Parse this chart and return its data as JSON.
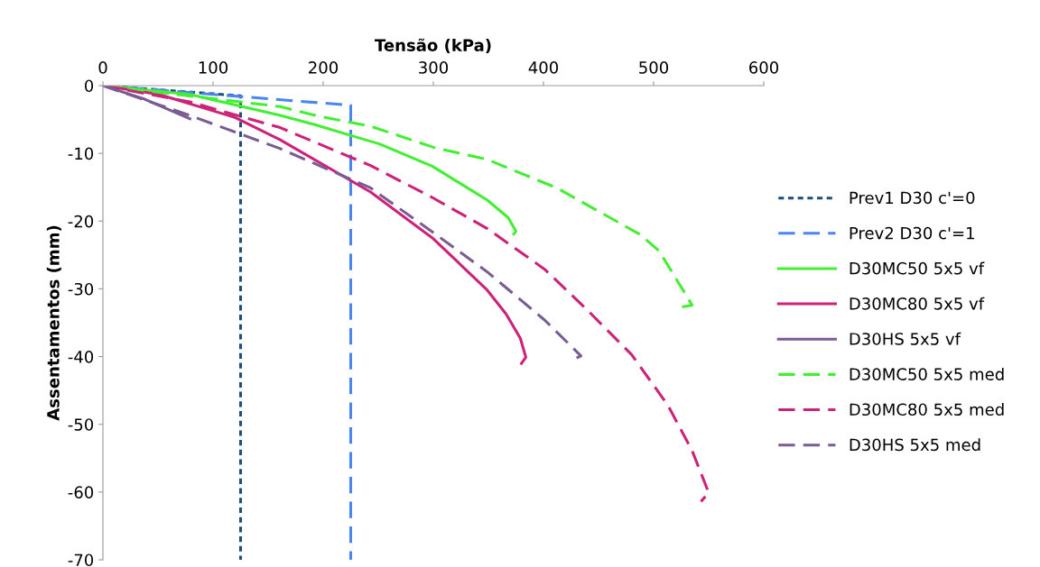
{
  "chart_data": {
    "type": "line",
    "xlabel": "Tensão (kPa)",
    "ylabel": "Assentamentos (mm)",
    "xlim": [
      0,
      600
    ],
    "xticks": [
      0,
      100,
      200,
      300,
      400,
      500,
      600
    ],
    "ylim": [
      -70,
      0
    ],
    "yticks": [
      -70,
      -60,
      -50,
      -40,
      -30,
      -20,
      -10,
      0
    ],
    "grid": false,
    "legend": "right",
    "series": [
      {
        "name": "Prev1 D30 c'=0",
        "color": "#1f4e79",
        "line_style": "dotted",
        "x": [
          0,
          125,
          125
        ],
        "values": [
          0,
          -1.5,
          -70
        ]
      },
      {
        "name": "Prev2 D30 c'=1",
        "color": "#4a86f0",
        "line_style": "dashed",
        "x": [
          0,
          225,
          225
        ],
        "values": [
          0,
          -2.9,
          -70
        ]
      },
      {
        "name": "D30MC50 5x5 vf",
        "color": "#44ee33",
        "line_style": "solid",
        "x": [
          0,
          79,
          161,
          193,
          226,
          251,
          299,
          349,
          368,
          375,
          373
        ],
        "values": [
          0,
          -1.3,
          -4.4,
          -5.8,
          -7.4,
          -8.6,
          -11.9,
          -16.9,
          -19.5,
          -21.5,
          -21.9
        ]
      },
      {
        "name": "D30MC80 5x5 vf",
        "color": "#cc2277",
        "line_style": "solid",
        "x": [
          0,
          51,
          120,
          161,
          243,
          300,
          349,
          366,
          379,
          384,
          380
        ],
        "values": [
          0,
          -1.3,
          -4.7,
          -8.0,
          -15.7,
          -22.6,
          -30.2,
          -33.7,
          -37.3,
          -40.1,
          -41.0
        ]
      },
      {
        "name": "D30HS 5x5 vf",
        "color": "#7a5c94",
        "line_style": "solid",
        "x": [
          0,
          38,
          79
        ],
        "values": [
          0,
          -2.0,
          -4.9
        ]
      },
      {
        "name": "D30MC50 5x5 med",
        "color": "#44ee33",
        "line_style": "dashed",
        "x": [
          0,
          161,
          193,
          243,
          300,
          349,
          412,
          488,
          505,
          535,
          525
        ],
        "values": [
          0,
          -3.1,
          -4.4,
          -6.0,
          -9.1,
          -10.9,
          -15.1,
          -22.0,
          -24.4,
          -32.4,
          -32.7
        ]
      },
      {
        "name": "D30MC80 5x5 med",
        "color": "#cc2277",
        "line_style": "dashed",
        "x": [
          0,
          79,
          161,
          243,
          300,
          349,
          401,
          439,
          480,
          513,
          535,
          550,
          543
        ],
        "values": [
          0,
          -2.4,
          -6.2,
          -11.8,
          -16.6,
          -21.1,
          -27.1,
          -33.0,
          -39.7,
          -47.2,
          -53.9,
          -60.1,
          -61.4
        ]
      },
      {
        "name": "D30HS 5x5 med",
        "color": "#7a5c94",
        "line_style": "dashed",
        "x": [
          0,
          79,
          161,
          243,
          300,
          349,
          401,
          434,
          430
        ],
        "values": [
          0,
          -4.4,
          -9.3,
          -15.1,
          -21.7,
          -27.5,
          -34.6,
          -39.9,
          -40.2
        ]
      }
    ]
  }
}
